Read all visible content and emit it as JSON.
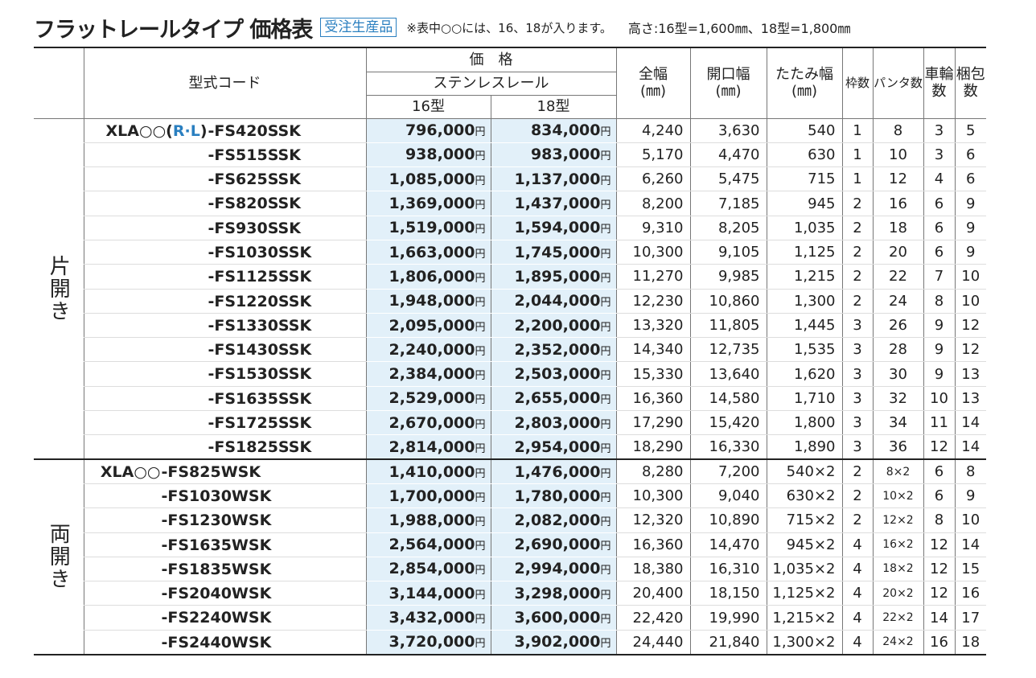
{
  "header": {
    "title": "フラットレールタイプ 価格表",
    "badge": "受注生産品",
    "note": "※表中○○には、16、18が入ります。",
    "height_note": "高さ:16型=1,600㎜、18型=1,800㎜"
  },
  "table": {
    "columns": {
      "code": "型式コード",
      "price": "価　格",
      "rail": "ステンレスレール",
      "p16": "16型",
      "p18": "18型",
      "width": [
        "全幅",
        "(㎜)"
      ],
      "opening": [
        "開口幅",
        "(㎜)"
      ],
      "folded": [
        "たたみ幅",
        "(㎜)"
      ],
      "frames": "枠数",
      "pantas": "パンタ数",
      "wheels": [
        "車輪",
        "数"
      ],
      "packs": [
        "梱包",
        "数"
      ]
    },
    "groups": [
      {
        "label": "片開き",
        "prefix": [
          "XLA○○(",
          "R·L",
          ")"
        ],
        "rows": [
          [
            "-FS420SSK",
            "796,000円",
            "834,000円",
            "4,240",
            "3,630",
            "540",
            "1",
            "8",
            "3",
            "5"
          ],
          [
            "-FS515SSK",
            "938,000円",
            "983,000円",
            "5,170",
            "4,470",
            "630",
            "1",
            "10",
            "3",
            "6"
          ],
          [
            "-FS625SSK",
            "1,085,000円",
            "1,137,000円",
            "6,260",
            "5,475",
            "715",
            "1",
            "12",
            "4",
            "6"
          ],
          [
            "-FS820SSK",
            "1,369,000円",
            "1,437,000円",
            "8,200",
            "7,185",
            "945",
            "2",
            "16",
            "6",
            "9"
          ],
          [
            "-FS930SSK",
            "1,519,000円",
            "1,594,000円",
            "9,310",
            "8,205",
            "1,035",
            "2",
            "18",
            "6",
            "9"
          ],
          [
            "-FS1030SSK",
            "1,663,000円",
            "1,745,000円",
            "10,300",
            "9,105",
            "1,125",
            "2",
            "20",
            "6",
            "9"
          ],
          [
            "-FS1125SSK",
            "1,806,000円",
            "1,895,000円",
            "11,270",
            "9,985",
            "1,215",
            "2",
            "22",
            "7",
            "10"
          ],
          [
            "-FS1220SSK",
            "1,948,000円",
            "2,044,000円",
            "12,230",
            "10,860",
            "1,300",
            "2",
            "24",
            "8",
            "10"
          ],
          [
            "-FS1330SSK",
            "2,095,000円",
            "2,200,000円",
            "13,320",
            "11,805",
            "1,445",
            "3",
            "26",
            "9",
            "12"
          ],
          [
            "-FS1430SSK",
            "2,240,000円",
            "2,352,000円",
            "14,340",
            "12,735",
            "1,535",
            "3",
            "28",
            "9",
            "12"
          ],
          [
            "-FS1530SSK",
            "2,384,000円",
            "2,503,000円",
            "15,330",
            "13,640",
            "1,620",
            "3",
            "30",
            "9",
            "13"
          ],
          [
            "-FS1635SSK",
            "2,529,000円",
            "2,655,000円",
            "16,360",
            "14,580",
            "1,710",
            "3",
            "32",
            "10",
            "13"
          ],
          [
            "-FS1725SSK",
            "2,670,000円",
            "2,803,000円",
            "17,290",
            "15,420",
            "1,800",
            "3",
            "34",
            "11",
            "14"
          ],
          [
            "-FS1825SSK",
            "2,814,000円",
            "2,954,000円",
            "18,290",
            "16,330",
            "1,890",
            "3",
            "36",
            "12",
            "14"
          ]
        ]
      },
      {
        "label": "両開き",
        "prefix": [
          "XLA○○"
        ],
        "rows": [
          [
            "-FS825WSK",
            "1,410,000円",
            "1,476,000円",
            "8,280",
            "7,200",
            "540×2",
            "2",
            "8×2",
            "6",
            "8"
          ],
          [
            "-FS1030WSK",
            "1,700,000円",
            "1,780,000円",
            "10,300",
            "9,040",
            "630×2",
            "2",
            "10×2",
            "6",
            "9"
          ],
          [
            "-FS1230WSK",
            "1,988,000円",
            "2,082,000円",
            "12,320",
            "10,890",
            "715×2",
            "2",
            "12×2",
            "8",
            "10"
          ],
          [
            "-FS1635WSK",
            "2,564,000円",
            "2,690,000円",
            "16,360",
            "14,470",
            "945×2",
            "4",
            "16×2",
            "12",
            "14"
          ],
          [
            "-FS1835WSK",
            "2,854,000円",
            "2,994,000円",
            "18,380",
            "16,310",
            "1,035×2",
            "4",
            "18×2",
            "12",
            "15"
          ],
          [
            "-FS2040WSK",
            "3,144,000円",
            "3,298,000円",
            "20,400",
            "18,150",
            "1,125×2",
            "4",
            "20×2",
            "12",
            "16"
          ],
          [
            "-FS2240WSK",
            "3,432,000円",
            "3,600,000円",
            "22,420",
            "19,990",
            "1,215×2",
            "4",
            "22×2",
            "14",
            "17"
          ],
          [
            "-FS2440WSK",
            "3,720,000円",
            "3,902,000円",
            "24,440",
            "21,840",
            "1,300×2",
            "4",
            "24×2",
            "16",
            "18"
          ]
        ]
      }
    ]
  }
}
